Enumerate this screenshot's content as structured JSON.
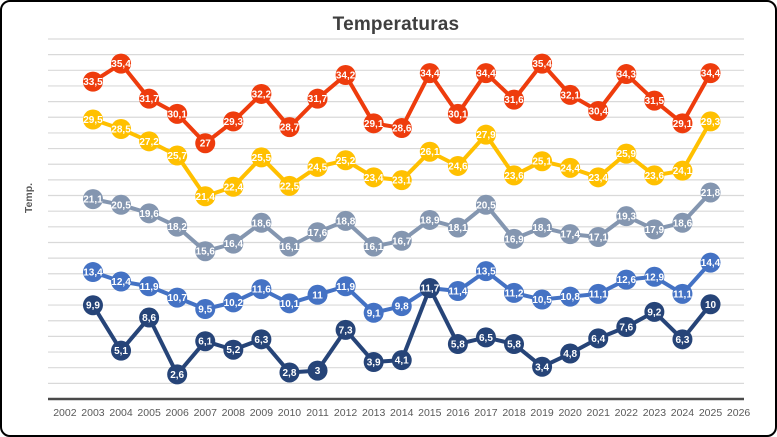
{
  "chart_data": {
    "type": "line",
    "title": "Temperaturas",
    "ylabel": "Temp.",
    "xlabel": "",
    "x_tick_labels": [
      "2002",
      "2003",
      "2004",
      "2005",
      "2006",
      "2007",
      "2008",
      "2009",
      "2010",
      "2011",
      "2012",
      "2013",
      "2014",
      "2015",
      "2016",
      "2017",
      "2018",
      "2019",
      "2020",
      "2021",
      "2022",
      "2023",
      "2024",
      "2025",
      "2026"
    ],
    "data_start_year": 2003,
    "data_years": [
      2003,
      2004,
      2005,
      2006,
      2007,
      2008,
      2009,
      2010,
      2011,
      2012,
      2013,
      2014,
      2015,
      2016,
      2017,
      2018,
      2019,
      2020,
      2021,
      2022,
      2023,
      2024,
      2025
    ],
    "ylim": [
      0,
      38
    ],
    "grid": true,
    "legend_position": "none",
    "decimal_separator": ",",
    "point_labels": "on-point, white bold",
    "colors": {
      "gridline": "#d9d9d9",
      "axis_line": "#4a4a4a",
      "title_text": "#3f3f3f",
      "tick_text": "#595959",
      "label_text": "#ffffff"
    },
    "series": [
      {
        "name": "red",
        "color": "#ee3c0d",
        "values": [
          33.5,
          35.4,
          31.7,
          30.1,
          27,
          29.3,
          32.2,
          28.7,
          31.7,
          34.2,
          29.1,
          28.6,
          34.4,
          30.1,
          34.4,
          31.6,
          35.4,
          32.1,
          30.4,
          34.3,
          31.5,
          29.1,
          34.4
        ]
      },
      {
        "name": "gold",
        "color": "#ffc000",
        "values": [
          29.5,
          28.5,
          27.2,
          25.7,
          21.4,
          22.4,
          25.5,
          22.5,
          24.5,
          25.2,
          23.4,
          23.1,
          26.1,
          24.6,
          27.9,
          23.6,
          25.1,
          24.4,
          23.4,
          25.9,
          23.6,
          24.1,
          29.3
        ]
      },
      {
        "name": "gray",
        "color": "#8496b0",
        "values": [
          21.1,
          20.5,
          19.6,
          18.2,
          15.6,
          16.4,
          18.6,
          16.1,
          17.6,
          18.8,
          16.1,
          16.7,
          18.9,
          18.1,
          20.5,
          16.9,
          18.1,
          17.4,
          17.1,
          19.3,
          17.9,
          18.6,
          21.8
        ]
      },
      {
        "name": "blue",
        "color": "#4472c4",
        "values": [
          13.4,
          12.4,
          11.9,
          10.7,
          9.5,
          10.2,
          11.6,
          10.1,
          11,
          11.9,
          9.1,
          9.8,
          11.7,
          11.4,
          13.5,
          11.2,
          10.5,
          10.8,
          11.1,
          12.6,
          12.9,
          11.1,
          14.4
        ]
      },
      {
        "name": "navy",
        "color": "#264478",
        "values": [
          9.9,
          5.1,
          8.6,
          2.6,
          6.1,
          5.2,
          6.3,
          2.8,
          3,
          7.3,
          3.9,
          4.1,
          11.7,
          5.8,
          6.5,
          5.8,
          3.4,
          4.8,
          6.4,
          7.6,
          9.2,
          6.3,
          10
        ]
      }
    ]
  }
}
